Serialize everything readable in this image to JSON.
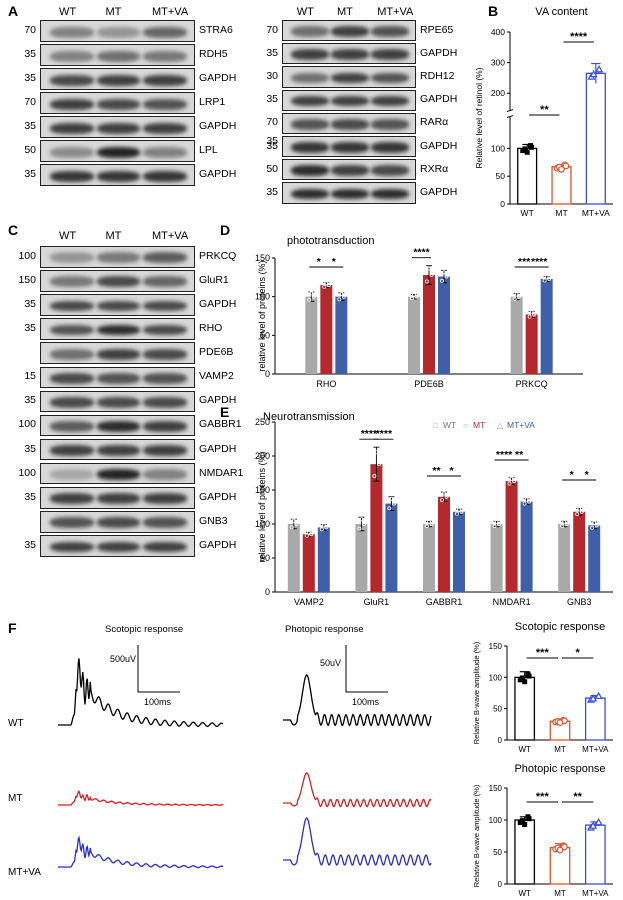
{
  "panels": {
    "A": "A",
    "B": "B",
    "C": "C",
    "D": "D",
    "E": "E",
    "F": "F"
  },
  "groups": [
    "WT",
    "MT",
    "MT+VA"
  ],
  "panelA_left": [
    {
      "mw": "70",
      "protein": "STRA6",
      "bands": [
        0.45,
        0.35,
        0.6
      ]
    },
    {
      "mw": "35",
      "protein": "RDH5",
      "bands": [
        0.45,
        0.55,
        0.5
      ]
    },
    {
      "mw": "35",
      "protein": "GAPDH",
      "bands": [
        0.75,
        0.8,
        0.8
      ]
    },
    {
      "mw": "70",
      "protein": "LRP1",
      "bands": [
        0.8,
        0.75,
        0.7
      ]
    },
    {
      "mw": "35",
      "protein": "GAPDH",
      "bands": [
        0.8,
        0.8,
        0.8
      ]
    },
    {
      "mw": "50",
      "protein": "LPL",
      "bands": [
        0.4,
        0.95,
        0.45
      ]
    },
    {
      "mw": "35",
      "protein": "GAPDH",
      "bands": [
        0.85,
        0.85,
        0.85
      ]
    }
  ],
  "panelA_right": [
    {
      "mw": "70",
      "protein": "RPE65",
      "bands": [
        0.55,
        0.8,
        0.7
      ]
    },
    {
      "mw": "35",
      "protein": "GAPDH",
      "bands": [
        0.8,
        0.8,
        0.8
      ]
    },
    {
      "mw": "30",
      "protein": "RDH12",
      "bands": [
        0.55,
        0.8,
        0.7
      ]
    },
    {
      "mw": "35",
      "protein": "GAPDH",
      "bands": [
        0.8,
        0.8,
        0.8
      ]
    },
    {
      "mw": "70",
      "protein": "RARα",
      "bands": [
        0.7,
        0.75,
        0.7
      ]
    },
    {
      "mw": "35",
      "protein": "GAPDH",
      "bands": [
        0.85,
        0.85,
        0.85
      ]
    },
    {
      "mw": "50",
      "protein": "RXRα",
      "bands": [
        0.9,
        0.8,
        0.75
      ]
    },
    {
      "mw": "35",
      "protein": "GAPDH",
      "bands": [
        0.9,
        0.9,
        0.9
      ]
    }
  ],
  "panelA_right_extra_mw": "35",
  "panelC": [
    {
      "mw": "100",
      "protein": "PRKCQ",
      "bands": [
        0.35,
        0.5,
        0.65
      ]
    },
    {
      "mw": "150",
      "protein": "GluR1",
      "bands": [
        0.5,
        0.75,
        0.6
      ]
    },
    {
      "mw": "35",
      "protein": "GAPDH",
      "bands": [
        0.75,
        0.75,
        0.75
      ]
    },
    {
      "mw": "35",
      "protein": "RHO",
      "bands": [
        0.7,
        0.9,
        0.75
      ]
    },
    {
      "mw": "",
      "protein": "PDE6B",
      "bands": [
        0.55,
        0.8,
        0.75
      ]
    },
    {
      "mw": "15",
      "protein": "VAMP2",
      "bands": [
        0.75,
        0.7,
        0.7
      ]
    },
    {
      "mw": "35",
      "protein": "GAPDH",
      "bands": [
        0.75,
        0.75,
        0.75
      ]
    },
    {
      "mw": "100",
      "protein": "GABBR1",
      "bands": [
        0.65,
        0.9,
        0.8
      ]
    },
    {
      "mw": "35",
      "protein": "GAPDH",
      "bands": [
        0.8,
        0.8,
        0.8
      ]
    },
    {
      "mw": "100",
      "protein": "NMDAR1",
      "bands": [
        0.25,
        0.95,
        0.45
      ]
    },
    {
      "mw": "35",
      "protein": "GAPDH",
      "bands": [
        0.8,
        0.8,
        0.8
      ]
    },
    {
      "mw": "",
      "protein": "GNB3",
      "bands": [
        0.7,
        0.75,
        0.7
      ]
    },
    {
      "mw": "35",
      "protein": "GAPDH",
      "bands": [
        0.8,
        0.8,
        0.8
      ]
    }
  ],
  "colors": {
    "WT": "#a9a9a9",
    "MT": "#b5292e",
    "MTVA": "#3f5fa8",
    "B_WT": "#000000",
    "B_MT": "#e0502a",
    "B_MTVA": "#3a4ee0"
  },
  "chart_data": [
    {
      "id": "B",
      "type": "bar",
      "title": "VA content",
      "ylabel": "Relative level of retinol (%)",
      "categories": [
        "WT",
        "MT",
        "MT+VA"
      ],
      "values": [
        100,
        67,
        265
      ],
      "errors": [
        7,
        4,
        32
      ],
      "ylim": [
        0,
        400
      ],
      "yticks": [
        "0",
        "50",
        "100",
        "200",
        "300",
        "400"
      ],
      "axis_break": true,
      "significance": [
        {
          "pair": [
            0,
            1
          ],
          "label": "**"
        },
        {
          "pair": [
            1,
            2
          ],
          "label": "****"
        }
      ]
    },
    {
      "id": "D",
      "type": "bar",
      "title": "phototransduction",
      "ylabel": "relative level of proteins (%)",
      "categories": [
        "RHO",
        "PDE6B",
        "PRKCQ"
      ],
      "series": [
        {
          "name": "WT",
          "values": [
            100,
            100,
            100
          ],
          "errors": [
            6,
            3,
            4
          ]
        },
        {
          "name": "MT",
          "values": [
            115,
            128,
            77
          ],
          "errors": [
            3,
            12,
            4
          ]
        },
        {
          "name": "MT+VA",
          "values": [
            100,
            126,
            123
          ],
          "errors": [
            5,
            8,
            3
          ]
        }
      ],
      "ylim": [
        0,
        150
      ],
      "yticks": [
        "0",
        "50",
        "100",
        "150"
      ],
      "significance": [
        [
          "*",
          "*"
        ],
        [
          "****"
        ],
        [
          "***",
          "****"
        ]
      ]
    },
    {
      "id": "E",
      "type": "bar",
      "title": "Neurotransmission",
      "ylabel": "relative level of proteins (%)",
      "categories": [
        "VAMP2",
        "GluR1",
        "GABBR1",
        "NMDAR1",
        "GNB3"
      ],
      "series": [
        {
          "name": "WT",
          "values": [
            100,
            100,
            100,
            100,
            100
          ],
          "errors": [
            7,
            10,
            4,
            4,
            4
          ]
        },
        {
          "name": "MT",
          "values": [
            85,
            188,
            140,
            163,
            118
          ],
          "errors": [
            3,
            25,
            7,
            5,
            5
          ]
        },
        {
          "name": "MT+VA",
          "values": [
            95,
            130,
            118,
            133,
            98
          ],
          "errors": [
            4,
            10,
            4,
            4,
            5
          ]
        }
      ],
      "ylim": [
        0,
        250
      ],
      "yticks": [
        "0",
        "50",
        "100",
        "150",
        "200",
        "250"
      ],
      "legend": [
        "WT",
        "MT",
        "MT+VA"
      ],
      "significance": [
        [],
        [
          "****",
          "****"
        ],
        [
          "**",
          "*"
        ],
        [
          "****",
          "**"
        ],
        [
          "*",
          "*"
        ]
      ]
    },
    {
      "id": "F1",
      "type": "bar",
      "title": "Scotopic response",
      "ylabel": "Relative B-wave amplitude (%)",
      "categories": [
        "WT",
        "MT",
        "MT+VA"
      ],
      "values": [
        100,
        30,
        67
      ],
      "errors": [
        9,
        3,
        4
      ],
      "ylim": [
        0,
        150
      ],
      "yticks": [
        "0",
        "50",
        "100",
        "150"
      ],
      "significance": [
        {
          "pair": [
            0,
            1
          ],
          "label": "***"
        },
        {
          "pair": [
            1,
            2
          ],
          "label": "*"
        }
      ]
    },
    {
      "id": "F2",
      "type": "bar",
      "title": "Photopic response",
      "ylabel": "Relative B-wave amplitude (%)",
      "categories": [
        "WT",
        "MT",
        "MT+VA"
      ],
      "values": [
        100,
        57,
        92
      ],
      "errors": [
        5,
        6,
        5
      ],
      "ylim": [
        0,
        150
      ],
      "yticks": [
        "0",
        "50",
        "100",
        "150"
      ],
      "significance": [
        {
          "pair": [
            0,
            1
          ],
          "label": "***"
        },
        {
          "pair": [
            1,
            2
          ],
          "label": "**"
        }
      ]
    }
  ],
  "erg": {
    "scotopic_title": "Scotopic response",
    "photopic_title": "Photopic response",
    "scotopic_scale_v": "500uV",
    "photopic_scale_v": "50uV",
    "scale_t": "100ms",
    "rows": [
      "WT",
      "MT",
      "MT+VA"
    ]
  }
}
